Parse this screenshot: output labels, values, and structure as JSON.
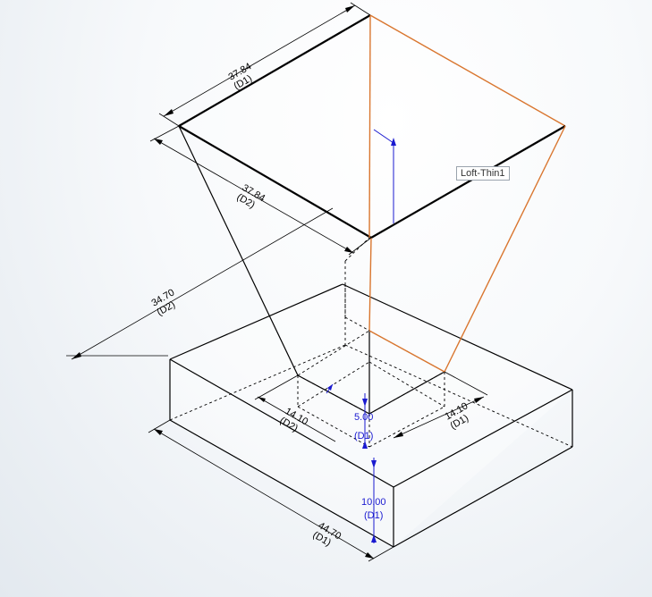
{
  "feature_callout": "Loft-Thin1",
  "dimensions": {
    "top_edge_back": {
      "value": "37.84",
      "tag": "(D1)"
    },
    "top_edge_front": {
      "value": "37.84",
      "tag": "(D2)"
    },
    "loft_height": {
      "value": "34.70",
      "tag": "(D2)"
    },
    "bottom_left": {
      "value": "14.10",
      "tag": "(D2)"
    },
    "bottom_right": {
      "value": "14.10",
      "tag": "(D1)"
    },
    "offset": {
      "value": "5.00",
      "tag": "(D1)"
    },
    "base_thickness": {
      "value": "10.00",
      "tag": "(D1)"
    },
    "base_length": {
      "value": "44.70",
      "tag": "(D1)"
    }
  },
  "colors": {
    "edge": "#000000",
    "selected_edge": "#d9762f",
    "driven_dimension": "#1a1ad0"
  }
}
